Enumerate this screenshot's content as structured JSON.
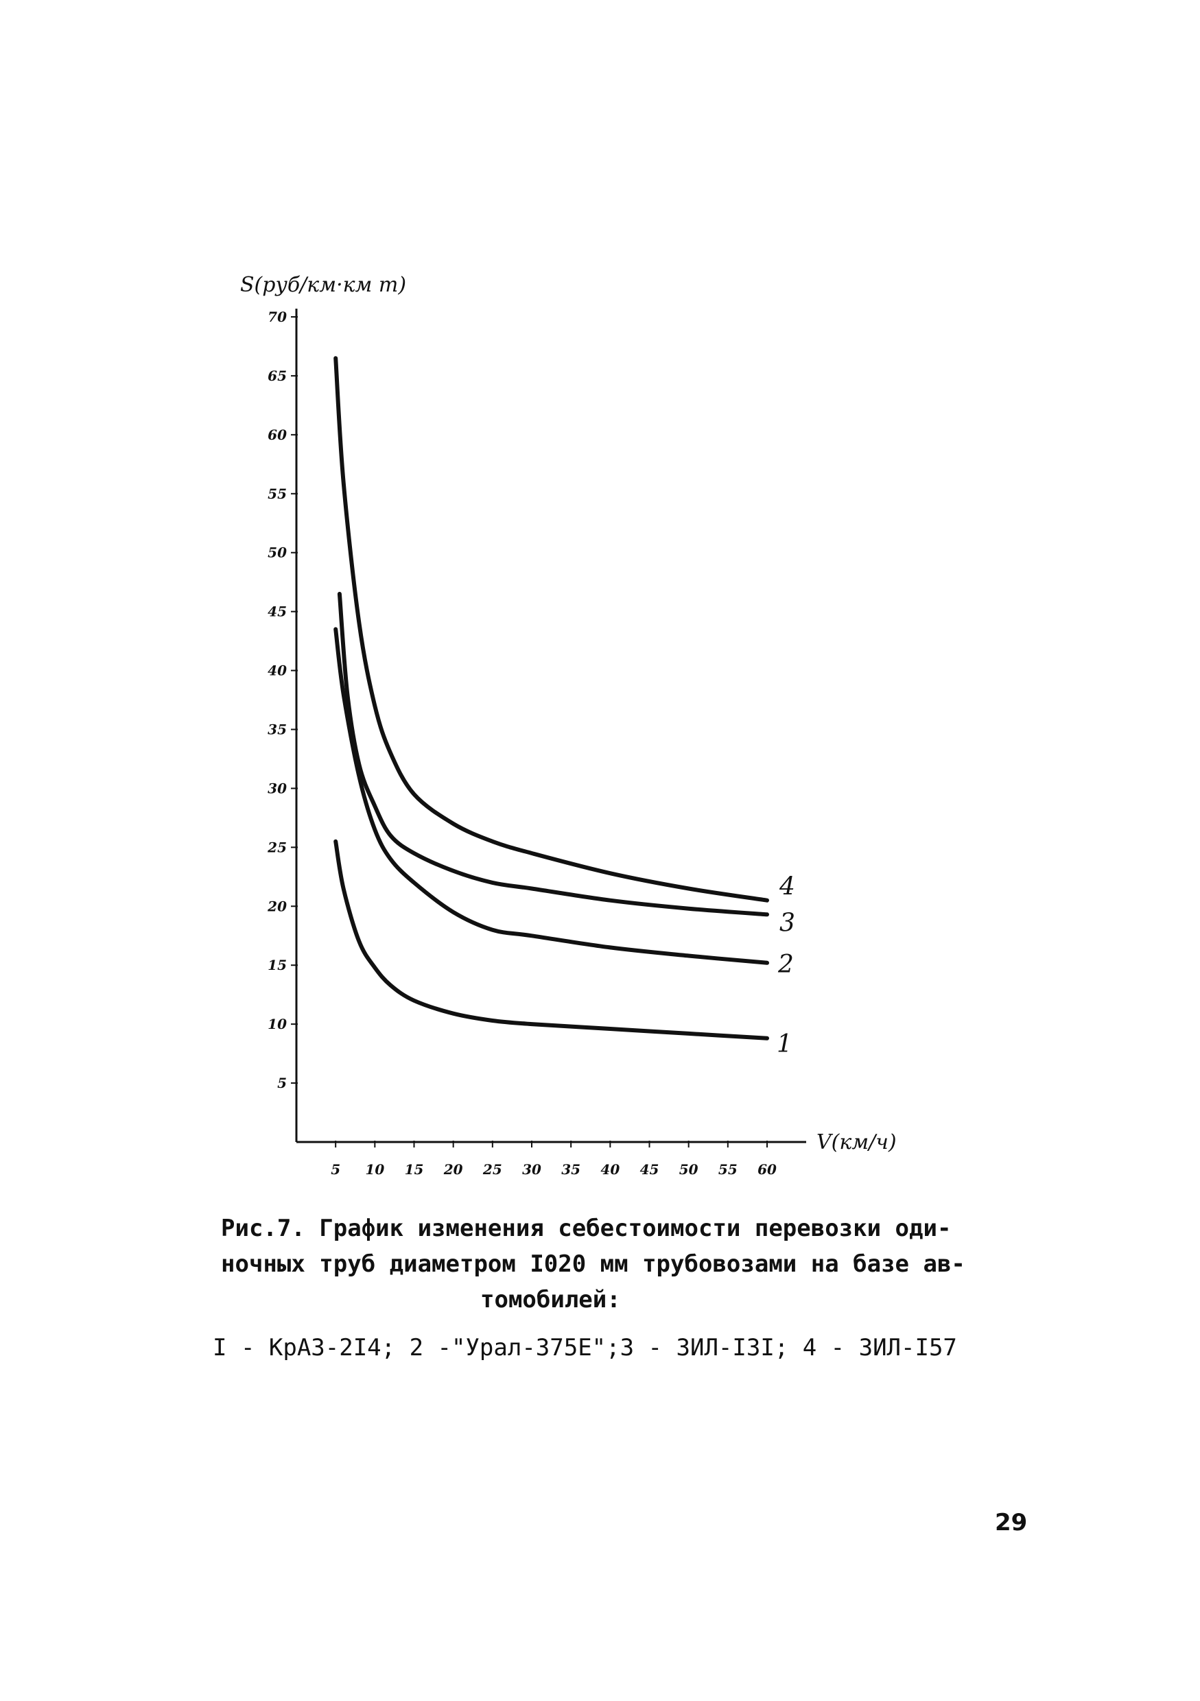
{
  "chart_data": {
    "type": "line",
    "title": "",
    "ylabel": "S(руб/км·км т)",
    "xlabel": "V(км/ч)",
    "xlim": [
      0,
      60
    ],
    "ylim": [
      0,
      70
    ],
    "x_ticks": [
      "5",
      "10",
      "15",
      "20",
      "25",
      "30",
      "35",
      "40",
      "45",
      "50",
      "55",
      "60"
    ],
    "y_ticks": [
      "5",
      "10",
      "15",
      "20",
      "25",
      "30",
      "35",
      "40",
      "45",
      "50",
      "55",
      "60",
      "65",
      "70"
    ],
    "grid": false,
    "series": [
      {
        "name": "1",
        "x": [
          5,
          6,
          8,
          10,
          12,
          15,
          20,
          25,
          30,
          40,
          50,
          60
        ],
        "y": [
          25.5,
          21.5,
          17.0,
          14.8,
          13.3,
          12.0,
          10.9,
          10.3,
          10.0,
          9.6,
          9.2,
          8.8
        ]
      },
      {
        "name": "2",
        "x": [
          5,
          6,
          8,
          10,
          12,
          15,
          20,
          25,
          30,
          40,
          50,
          60
        ],
        "y": [
          43.5,
          38.0,
          31.0,
          26.5,
          24.0,
          22.0,
          19.5,
          18.0,
          17.5,
          16.5,
          15.8,
          15.2
        ]
      },
      {
        "name": "3",
        "x": [
          5.5,
          6.5,
          8,
          10,
          12,
          15,
          20,
          25,
          30,
          40,
          50,
          60
        ],
        "y": [
          46.5,
          38.0,
          32.0,
          28.5,
          26.0,
          24.5,
          23.0,
          22.0,
          21.5,
          20.5,
          19.8,
          19.3
        ]
      },
      {
        "name": "4",
        "x": [
          5,
          6,
          8,
          10,
          12,
          15,
          20,
          25,
          30,
          40,
          50,
          60
        ],
        "y": [
          66.5,
          56.0,
          44.0,
          37.0,
          33.0,
          29.5,
          27.0,
          25.5,
          24.5,
          22.8,
          21.5,
          20.5
        ]
      }
    ]
  },
  "caption": {
    "line1": "Рис.7. График изменения себестоимости перевозки оди-",
    "line2": "ночных труб диаметром I020 мм трубовозами на базе ав-",
    "line3": "томобилей:",
    "legend": "I - КрАЗ-2I4; 2 -\"Урал-375Е\";3 - ЗИЛ-I3I; 4 - ЗИЛ-I57"
  },
  "page_number": "29"
}
